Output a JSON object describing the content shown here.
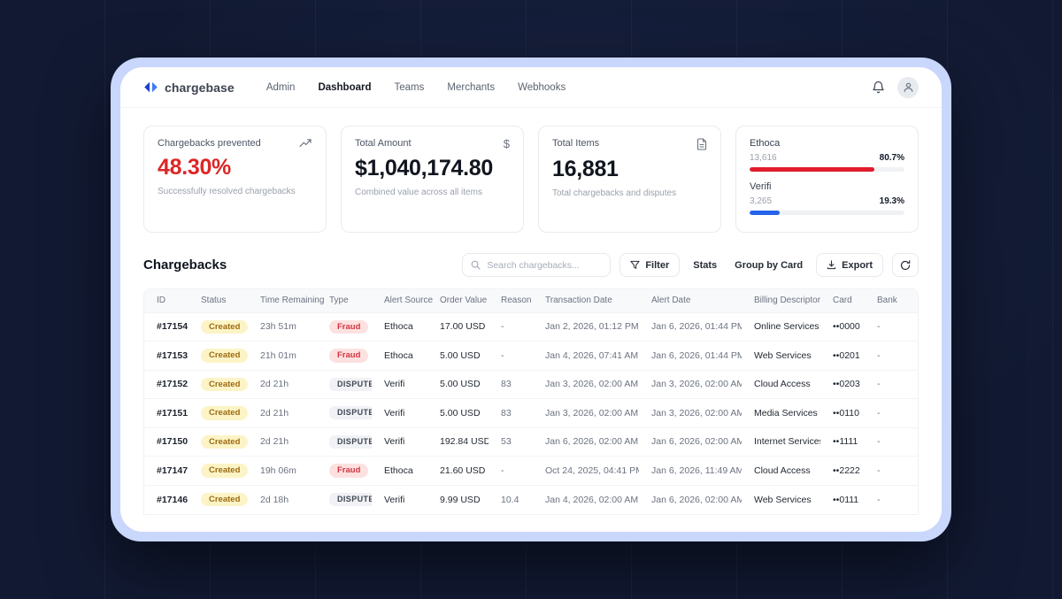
{
  "header": {
    "brand": "chargebase",
    "nav": [
      {
        "label": "Admin",
        "active": false
      },
      {
        "label": "Dashboard",
        "active": true
      },
      {
        "label": "Teams",
        "active": false
      },
      {
        "label": "Merchants",
        "active": false
      },
      {
        "label": "Webhooks",
        "active": false
      }
    ]
  },
  "cards": {
    "prevented": {
      "title": "Chargebacks prevented",
      "icon": "trend-up-icon",
      "value": "48.30%",
      "subtitle": "Successfully resolved chargebacks"
    },
    "total_amount": {
      "title": "Total Amount",
      "icon": "dollar-icon",
      "value": "$1,040,174.80",
      "subtitle": "Combined value across all items"
    },
    "total_items": {
      "title": "Total Items",
      "icon": "document-icon",
      "value": "16,881",
      "subtitle": "Total chargebacks and disputes"
    },
    "sources": {
      "items": [
        {
          "name": "Ethoca",
          "count": "13,616",
          "pct": "80.7%",
          "pct_value": 80.7,
          "color": "#e11d2d"
        },
        {
          "name": "Verifi",
          "count": "3,265",
          "pct": "19.3%",
          "pct_value": 19.3,
          "color": "#2563eb"
        }
      ]
    }
  },
  "section": {
    "title": "Chargebacks",
    "search_placeholder": "Search chargebacks...",
    "filter_label": "Filter",
    "stats_label": "Stats",
    "group_label": "Group by Card",
    "export_label": "Export"
  },
  "table": {
    "columns": [
      "ID",
      "Status",
      "Time Remaining",
      "Type",
      "Alert Source",
      "Order Value",
      "Reason",
      "Transaction Date",
      "Alert Date",
      "Billing Descriptor",
      "Card",
      "Bank"
    ],
    "rows": [
      {
        "id": "#17154",
        "status": "Created",
        "time_remaining": "23h 51m",
        "type": "Fraud",
        "type_style": "fraud",
        "alert_source": "Ethoca",
        "order_value": "17.00 USD",
        "reason": "-",
        "transaction_date": "Jan 2, 2026, 01:12 PM",
        "alert_date": "Jan 6, 2026, 01:44 PM",
        "billing_descriptor": "Online Services",
        "card": "••0000",
        "bank": "-"
      },
      {
        "id": "#17153",
        "status": "Created",
        "time_remaining": "21h 01m",
        "type": "Fraud",
        "type_style": "fraud",
        "alert_source": "Ethoca",
        "order_value": "5.00 USD",
        "reason": "-",
        "transaction_date": "Jan 4, 2026, 07:41 AM",
        "alert_date": "Jan 6, 2026, 01:44 PM",
        "billing_descriptor": "Web Services",
        "card": "••0201",
        "bank": "-"
      },
      {
        "id": "#17152",
        "status": "Created",
        "time_remaining": "2d 21h",
        "type": "DISPUTE",
        "type_style": "dispute",
        "alert_source": "Verifi",
        "order_value": "5.00 USD",
        "reason": "83",
        "transaction_date": "Jan 3, 2026, 02:00 AM",
        "alert_date": "Jan 3, 2026, 02:00 AM",
        "billing_descriptor": "Cloud Access",
        "card": "••0203",
        "bank": "-"
      },
      {
        "id": "#17151",
        "status": "Created",
        "time_remaining": "2d 21h",
        "type": "DISPUTE",
        "type_style": "dispute",
        "alert_source": "Verifi",
        "order_value": "5.00 USD",
        "reason": "83",
        "transaction_date": "Jan 3, 2026, 02:00 AM",
        "alert_date": "Jan 3, 2026, 02:00 AM",
        "billing_descriptor": "Media Services",
        "card": "••0110",
        "bank": "-"
      },
      {
        "id": "#17150",
        "status": "Created",
        "time_remaining": "2d 21h",
        "type": "DISPUTE",
        "type_style": "dispute",
        "alert_source": "Verifi",
        "order_value": "192.84 USD",
        "reason": "53",
        "transaction_date": "Jan 6, 2026, 02:00 AM",
        "alert_date": "Jan 6, 2026, 02:00 AM",
        "billing_descriptor": "Internet Services",
        "card": "••1111",
        "bank": "-"
      },
      {
        "id": "#17147",
        "status": "Created",
        "time_remaining": "19h 06m",
        "type": "Fraud",
        "type_style": "fraud",
        "alert_source": "Ethoca",
        "order_value": "21.60 USD",
        "reason": "-",
        "transaction_date": "Oct 24, 2025, 04:41 PM",
        "alert_date": "Jan 6, 2026, 11:49 AM",
        "billing_descriptor": "Cloud Access",
        "card": "••2222",
        "bank": "-"
      },
      {
        "id": "#17146",
        "status": "Created",
        "time_remaining": "2d 18h",
        "type": "DISPUTE",
        "type_style": "dispute",
        "alert_source": "Verifi",
        "order_value": "9.99 USD",
        "reason": "10.4",
        "transaction_date": "Jan 4, 2026, 02:00 AM",
        "alert_date": "Jan 6, 2026, 02:00 AM",
        "billing_descriptor": "Web Services",
        "card": "••0111",
        "bank": "-"
      }
    ]
  },
  "colors": {
    "accent_red": "#dc2626",
    "accent_blue": "#2563eb",
    "frame": "#c8d7fb",
    "page_bg": "#121a33",
    "badge_created_bg": "#fcf4c6",
    "badge_created_text": "#9c6a12",
    "badge_fraud_bg": "#fde1e1",
    "badge_fraud_text": "#d23440",
    "badge_dispute_bg": "#f1f2f5",
    "badge_dispute_text": "#3f4754"
  }
}
